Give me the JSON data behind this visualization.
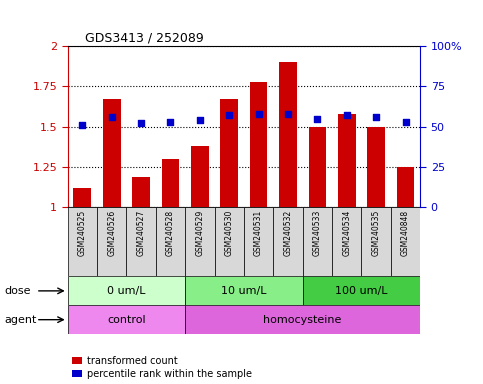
{
  "title": "GDS3413 / 252089",
  "samples": [
    "GSM240525",
    "GSM240526",
    "GSM240527",
    "GSM240528",
    "GSM240529",
    "GSM240530",
    "GSM240531",
    "GSM240532",
    "GSM240533",
    "GSM240534",
    "GSM240535",
    "GSM240848"
  ],
  "transformed_count": [
    1.12,
    1.67,
    1.19,
    1.3,
    1.38,
    1.67,
    1.78,
    1.9,
    1.5,
    1.58,
    1.5,
    1.25
  ],
  "percentile_rank": [
    51,
    56,
    52,
    53,
    54,
    57,
    58,
    58,
    55,
    57,
    56,
    53
  ],
  "bar_color": "#cc0000",
  "dot_color": "#0000cc",
  "ylim_left": [
    1.0,
    2.0
  ],
  "ylim_right": [
    0,
    100
  ],
  "yticks_left": [
    1.0,
    1.25,
    1.5,
    1.75,
    2.0
  ],
  "yticks_right": [
    0,
    25,
    50,
    75,
    100
  ],
  "dose_groups": [
    {
      "label": "0 um/L",
      "start": 0,
      "end": 4,
      "color": "#ccffcc"
    },
    {
      "label": "10 um/L",
      "start": 4,
      "end": 8,
      "color": "#88ee88"
    },
    {
      "label": "100 um/L",
      "start": 8,
      "end": 12,
      "color": "#44cc44"
    }
  ],
  "agent_groups": [
    {
      "label": "control",
      "start": 0,
      "end": 4,
      "color": "#ee88ee"
    },
    {
      "label": "homocysteine",
      "start": 4,
      "end": 12,
      "color": "#dd66dd"
    }
  ],
  "dose_label": "dose",
  "agent_label": "agent",
  "legend_bar_label": "transformed count",
  "legend_dot_label": "percentile rank within the sample",
  "tick_label_color_left": "#cc0000",
  "tick_label_color_right": "#0000cc",
  "sample_box_color": "#d8d8d8",
  "background_color": "#ffffff"
}
